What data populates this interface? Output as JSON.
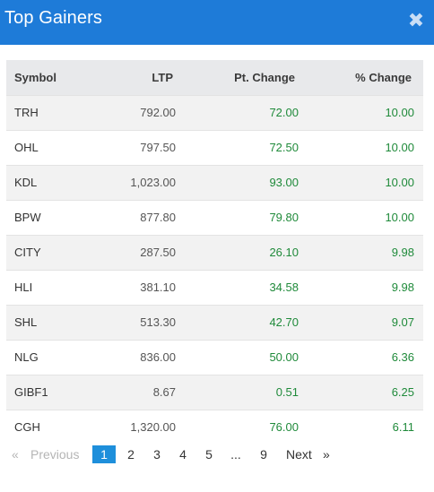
{
  "header": {
    "title": "Top Gainers",
    "close_glyph": "✖",
    "accent_color": "#1e7bd8"
  },
  "table": {
    "columns": [
      "Symbol",
      "LTP",
      "Pt. Change",
      "% Change"
    ],
    "rows": [
      {
        "symbol": "TRH",
        "ltp": "792.00",
        "pt_change": "72.00",
        "pct_change": "10.00"
      },
      {
        "symbol": "OHL",
        "ltp": "797.50",
        "pt_change": "72.50",
        "pct_change": "10.00"
      },
      {
        "symbol": "KDL",
        "ltp": "1,023.00",
        "pt_change": "93.00",
        "pct_change": "10.00"
      },
      {
        "symbol": "BPW",
        "ltp": "877.80",
        "pt_change": "79.80",
        "pct_change": "10.00"
      },
      {
        "symbol": "CITY",
        "ltp": "287.50",
        "pt_change": "26.10",
        "pct_change": "9.98"
      },
      {
        "symbol": "HLI",
        "ltp": "381.10",
        "pt_change": "34.58",
        "pct_change": "9.98"
      },
      {
        "symbol": "SHL",
        "ltp": "513.30",
        "pt_change": "42.70",
        "pct_change": "9.07"
      },
      {
        "symbol": "NLG",
        "ltp": "836.00",
        "pt_change": "50.00",
        "pct_change": "6.36"
      },
      {
        "symbol": "GIBF1",
        "ltp": "8.67",
        "pt_change": "0.51",
        "pct_change": "6.25"
      },
      {
        "symbol": "CGH",
        "ltp": "1,320.00",
        "pt_change": "76.00",
        "pct_change": "6.11"
      }
    ],
    "gain_color": "#1f8a3a"
  },
  "pagination": {
    "first_glyph": "«",
    "previous_label": "Previous",
    "pages": [
      "1",
      "2",
      "3",
      "4",
      "5"
    ],
    "ellipsis": "...",
    "last_page": "9",
    "next_label": "Next",
    "last_glyph": "»",
    "current_page": "1"
  }
}
